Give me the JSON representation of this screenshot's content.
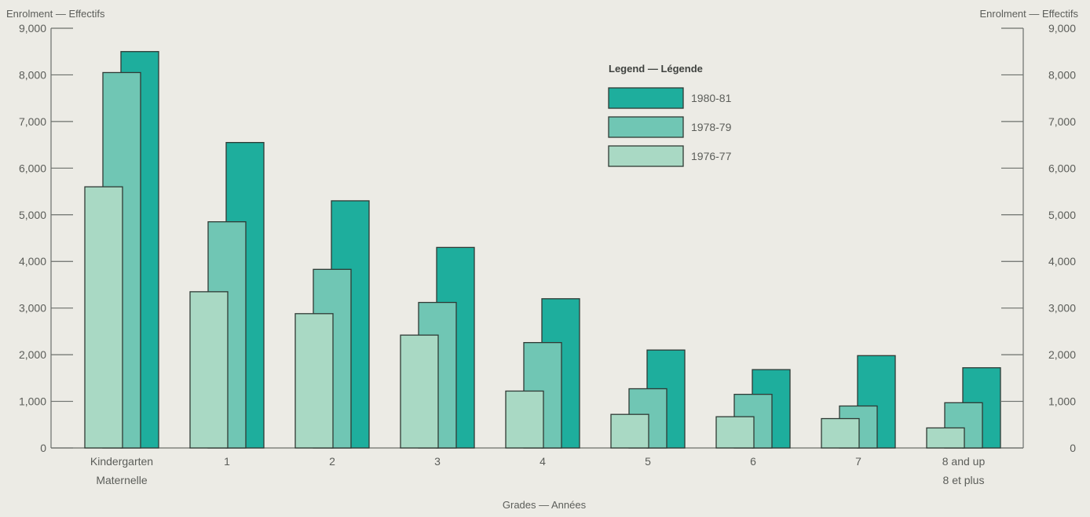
{
  "chart_data": {
    "type": "bar",
    "title": "",
    "ylabel_left": "Enrolment — Effectifs",
    "ylabel_right": "Enrolment — Effectifs",
    "xlabel": "Grades — Années",
    "legend_title": "Legend — Légende",
    "legend_position": "top-right",
    "ylim": [
      0,
      9000
    ],
    "yticks": [
      0,
      1000,
      2000,
      3000,
      4000,
      5000,
      6000,
      7000,
      8000,
      9000
    ],
    "ytick_labels": [
      "0",
      "1,000",
      "2,000",
      "3,000",
      "4,000",
      "5,000",
      "6,000",
      "7,000",
      "8,000",
      "9,000"
    ],
    "categories": [
      [
        "Kindergarten",
        "Maternelle"
      ],
      [
        "1"
      ],
      [
        "2"
      ],
      [
        "3"
      ],
      [
        "4"
      ],
      [
        "5"
      ],
      [
        "6"
      ],
      [
        "7"
      ],
      [
        "8 and up",
        "8 et plus"
      ]
    ],
    "series": [
      {
        "name": "1976-77",
        "color": "#a9d9c4",
        "values": [
          5600,
          3350,
          2880,
          2420,
          1220,
          720,
          670,
          630,
          430
        ]
      },
      {
        "name": "1978-79",
        "color": "#70c6b4",
        "values": [
          8050,
          4850,
          3830,
          3120,
          2260,
          1270,
          1150,
          900,
          970
        ]
      },
      {
        "name": "1980-81",
        "color": "#1eae9d",
        "values": [
          8500,
          6550,
          5300,
          4300,
          3200,
          2100,
          1680,
          1980,
          1720
        ]
      }
    ],
    "legend_order": [
      "1980-81",
      "1978-79",
      "1976-77"
    ],
    "grid": false
  }
}
